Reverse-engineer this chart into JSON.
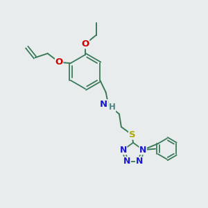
{
  "bg_color": "#e8ecec",
  "bond_color": "#3a7a5a",
  "atom_colors": {
    "O": "#cc0000",
    "N": "#1a1acc",
    "S": "#aaaa00",
    "H": "#4a8888",
    "C": "#3a7a5a"
  },
  "figsize": [
    3.0,
    3.0
  ],
  "dpi": 100
}
